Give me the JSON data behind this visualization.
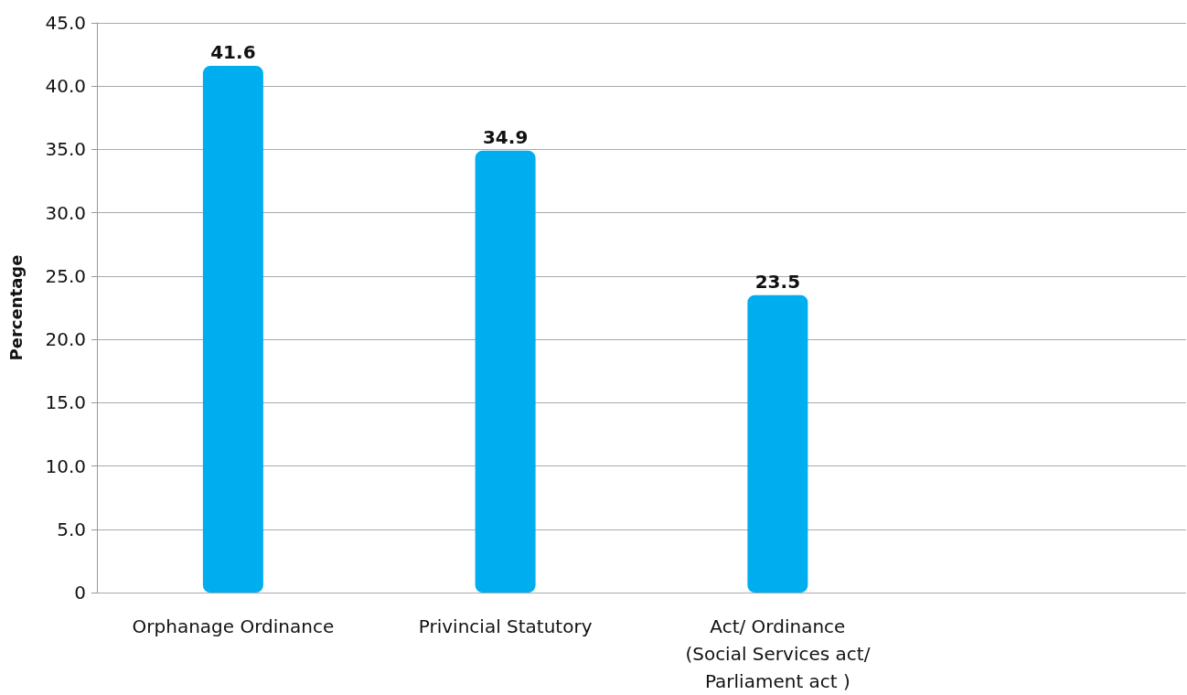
{
  "chart_data": {
    "type": "bar",
    "ylabel": "Percentage",
    "categories": [
      "Orphanage Ordinance",
      "Privincial Statutory",
      "Act/ Ordinance\n(Social Services act/\nParliament act )",
      null
    ],
    "values": [
      41.6,
      34.9,
      23.5,
      null
    ],
    "color": "#00aeef",
    "data_labels": true,
    "ylim": [
      0,
      45
    ],
    "yticks": [
      {
        "value": 0,
        "label": "0"
      },
      {
        "value": 5,
        "label": "5.0"
      },
      {
        "value": 10,
        "label": "10.0"
      },
      {
        "value": 15,
        "label": "15.0"
      },
      {
        "value": 20,
        "label": "20.0"
      },
      {
        "value": 25,
        "label": "25.0"
      },
      {
        "value": 30,
        "label": "30.0"
      },
      {
        "value": 35,
        "label": "35.0"
      },
      {
        "value": 40,
        "label": "40.0"
      },
      {
        "value": 45,
        "label": "45.0"
      }
    ],
    "grid": "y"
  }
}
